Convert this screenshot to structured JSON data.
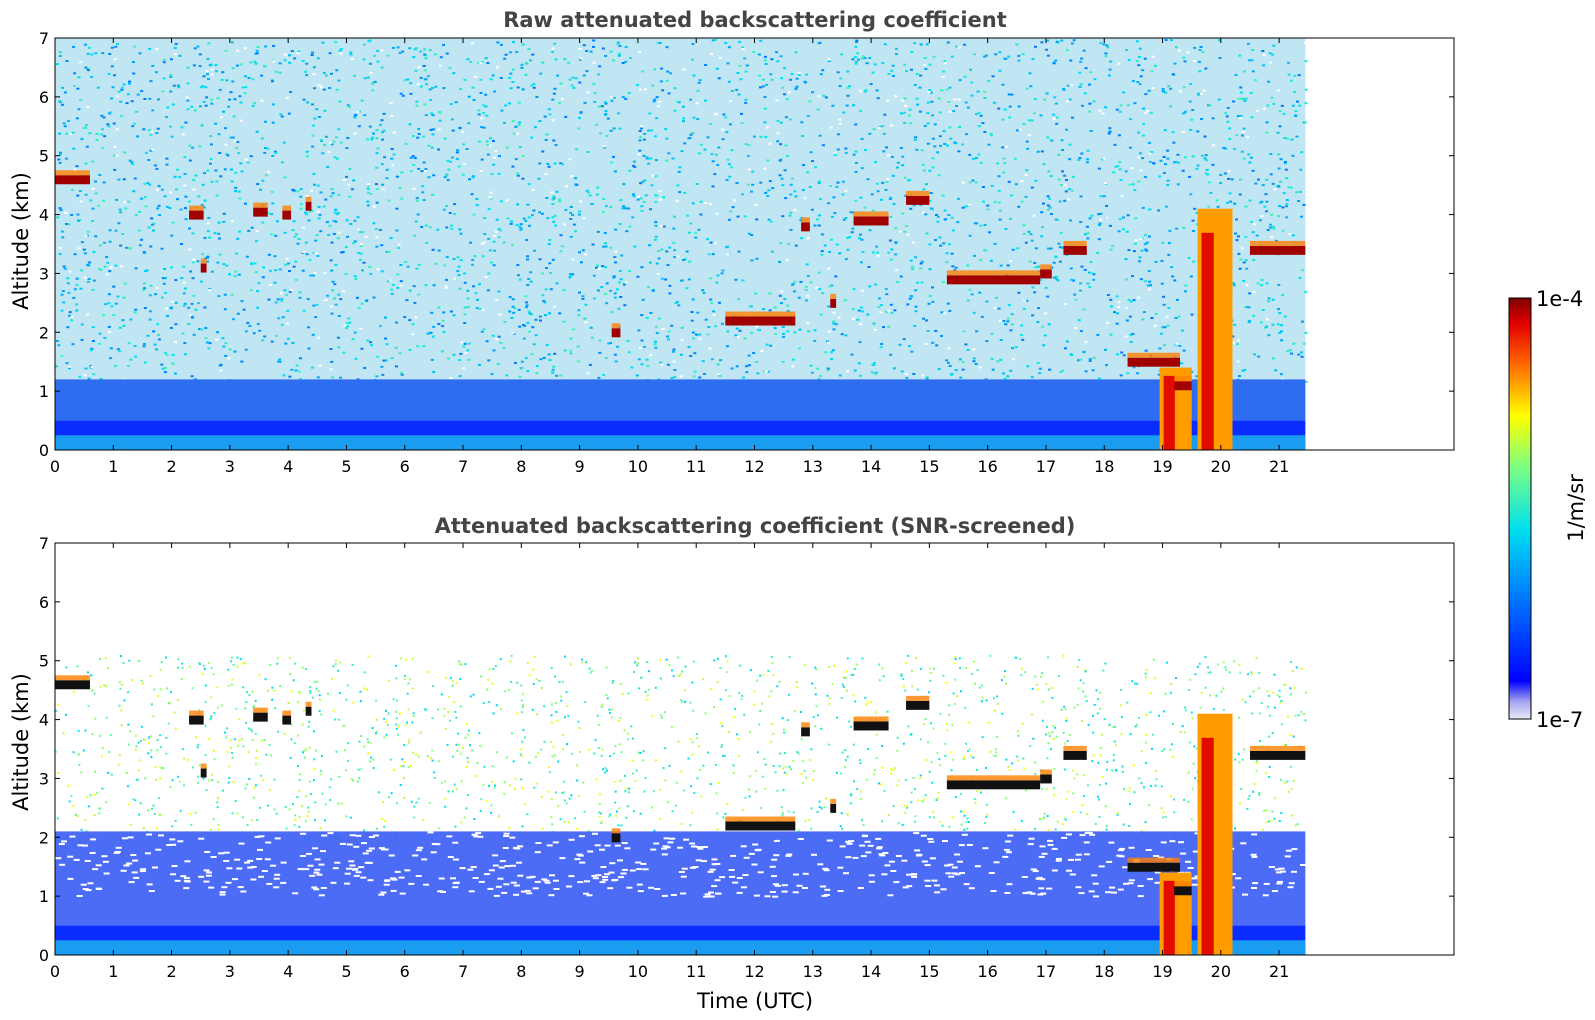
{
  "chart_data": [
    {
      "type": "heatmap",
      "title": "Raw attenuated backscattering coefficient",
      "xlabel": "",
      "ylabel": "Altitude (km)",
      "xlim": [
        0,
        24
      ],
      "ylim": [
        0,
        7
      ],
      "x_ticks": [
        "0",
        "1",
        "2",
        "3",
        "4",
        "5",
        "6",
        "7",
        "8",
        "9",
        "10",
        "11",
        "12",
        "13",
        "14",
        "15",
        "16",
        "17",
        "18",
        "19",
        "20",
        "21"
      ],
      "y_ticks": [
        "0",
        "1",
        "2",
        "3",
        "4",
        "5",
        "6",
        "7"
      ],
      "data_end_time": 21.45,
      "background_noise": true,
      "cloud_layers": [
        {
          "t0": 0.0,
          "t1": 0.6,
          "alt": 4.6
        },
        {
          "t0": 2.3,
          "t1": 2.55,
          "alt": 4.0
        },
        {
          "t0": 2.5,
          "t1": 2.6,
          "alt": 3.1
        },
        {
          "t0": 3.4,
          "t1": 3.65,
          "alt": 4.05
        },
        {
          "t0": 3.9,
          "t1": 4.05,
          "alt": 4.0
        },
        {
          "t0": 4.3,
          "t1": 4.4,
          "alt": 4.15
        },
        {
          "t0": 9.55,
          "t1": 9.7,
          "alt": 2.0
        },
        {
          "t0": 11.5,
          "t1": 12.7,
          "alt": 2.2
        },
        {
          "t0": 12.8,
          "t1": 12.95,
          "alt": 3.8
        },
        {
          "t0": 13.3,
          "t1": 13.4,
          "alt": 2.5
        },
        {
          "t0": 13.7,
          "t1": 14.3,
          "alt": 3.9
        },
        {
          "t0": 14.6,
          "t1": 15.0,
          "alt": 4.25
        },
        {
          "t0": 15.3,
          "t1": 16.9,
          "alt": 2.9
        },
        {
          "t0": 16.9,
          "t1": 17.1,
          "alt": 3.0
        },
        {
          "t0": 17.3,
          "t1": 17.7,
          "alt": 3.4
        },
        {
          "t0": 18.4,
          "t1": 19.3,
          "alt": 1.5
        },
        {
          "t0": 19.2,
          "t1": 19.5,
          "alt": 1.1
        },
        {
          "t0": 20.5,
          "t1": 21.45,
          "alt": 3.4
        }
      ],
      "plumes": [
        {
          "t0": 18.95,
          "t1": 19.5,
          "top": 1.4
        },
        {
          "t0": 19.6,
          "t1": 20.2,
          "top": 4.1
        }
      ]
    },
    {
      "type": "heatmap",
      "title": "Attenuated backscattering coefficient (SNR-screened)",
      "xlabel": "Time (UTC)",
      "ylabel": "Altitude (km)",
      "xlim": [
        0,
        24
      ],
      "ylim": [
        0,
        7
      ],
      "x_ticks": [
        "0",
        "1",
        "2",
        "3",
        "4",
        "5",
        "6",
        "7",
        "8",
        "9",
        "10",
        "11",
        "12",
        "13",
        "14",
        "15",
        "16",
        "17",
        "18",
        "19",
        "20",
        "21"
      ],
      "y_ticks": [
        "0",
        "1",
        "2",
        "3",
        "4",
        "5",
        "6",
        "7"
      ],
      "data_end_time": 21.45,
      "background_noise": false,
      "cloud_layers": [
        {
          "t0": 0.0,
          "t1": 0.6,
          "alt": 4.6
        },
        {
          "t0": 2.3,
          "t1": 2.55,
          "alt": 4.0
        },
        {
          "t0": 2.5,
          "t1": 2.6,
          "alt": 3.1
        },
        {
          "t0": 3.4,
          "t1": 3.65,
          "alt": 4.05
        },
        {
          "t0": 3.9,
          "t1": 4.05,
          "alt": 4.0
        },
        {
          "t0": 4.3,
          "t1": 4.4,
          "alt": 4.15
        },
        {
          "t0": 9.55,
          "t1": 9.7,
          "alt": 2.0
        },
        {
          "t0": 11.5,
          "t1": 12.7,
          "alt": 2.2
        },
        {
          "t0": 12.8,
          "t1": 12.95,
          "alt": 3.8
        },
        {
          "t0": 13.3,
          "t1": 13.4,
          "alt": 2.5
        },
        {
          "t0": 13.7,
          "t1": 14.3,
          "alt": 3.9
        },
        {
          "t0": 14.6,
          "t1": 15.0,
          "alt": 4.25
        },
        {
          "t0": 15.3,
          "t1": 16.9,
          "alt": 2.9
        },
        {
          "t0": 16.9,
          "t1": 17.1,
          "alt": 3.0
        },
        {
          "t0": 17.3,
          "t1": 17.7,
          "alt": 3.4
        },
        {
          "t0": 18.4,
          "t1": 19.3,
          "alt": 1.5
        },
        {
          "t0": 19.2,
          "t1": 19.5,
          "alt": 1.1
        },
        {
          "t0": 20.5,
          "t1": 21.45,
          "alt": 3.4
        }
      ],
      "plumes": [
        {
          "t0": 18.95,
          "t1": 19.5,
          "top": 1.4
        },
        {
          "t0": 19.6,
          "t1": 20.2,
          "top": 4.1
        }
      ]
    }
  ],
  "colorbar": {
    "label": "1/m/sr",
    "max_label": "1e-4",
    "min_label": "1e-7",
    "scale": "log",
    "colormap": "jet",
    "min_color": "#e6e6f5",
    "max_color": "#7f0000"
  }
}
